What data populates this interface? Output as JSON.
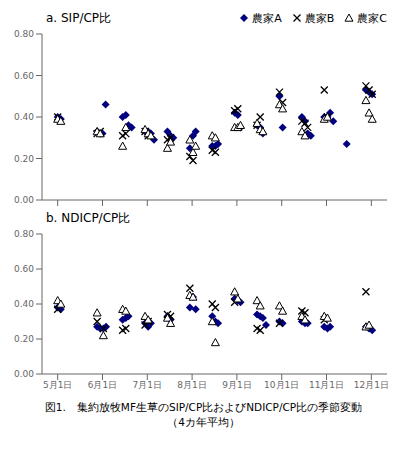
{
  "chart_data": [
    {
      "type": "scatter",
      "title": "a. SIP/CP比",
      "xlim": [
        4.65,
        12.35
      ],
      "xticks": [
        5,
        6,
        7,
        8,
        9,
        10,
        11,
        12
      ],
      "ylim": [
        0.0,
        0.8
      ],
      "yticks": [
        {
          "value": 0.0,
          "label": "0.00"
        },
        {
          "value": 0.2,
          "label": "0.20"
        },
        {
          "value": 0.4,
          "label": "0.40"
        },
        {
          "value": 0.6,
          "label": "0.60"
        },
        {
          "value": 0.8,
          "label": "0.80"
        }
      ],
      "tick_labels": "y",
      "legend": "upper right",
      "series": [
        {
          "name": "農家A",
          "color": "navy",
          "marker": "diamond",
          "x": [
            5.0,
            5.07,
            5.88,
            5.95,
            6.0,
            6.07,
            6.45,
            6.52,
            6.58,
            6.65,
            6.95,
            7.02,
            7.08,
            7.15,
            7.45,
            7.52,
            7.58,
            7.95,
            8.02,
            8.08,
            8.45,
            8.52,
            8.58,
            8.95,
            9.02,
            9.08,
            9.45,
            9.52,
            9.58,
            9.95,
            10.02,
            10.45,
            10.52,
            10.58,
            10.65,
            10.95,
            11.02,
            11.08,
            11.15,
            11.45,
            11.88,
            11.95,
            12.02
          ],
          "values": [
            0.4,
            0.39,
            0.33,
            0.32,
            0.32,
            0.46,
            0.4,
            0.41,
            0.36,
            0.35,
            0.33,
            0.33,
            0.32,
            0.29,
            0.33,
            0.31,
            0.3,
            0.25,
            0.31,
            0.33,
            0.26,
            0.26,
            0.27,
            0.42,
            0.41,
            0.35,
            0.36,
            0.35,
            0.32,
            0.5,
            0.35,
            0.4,
            0.38,
            0.32,
            0.31,
            0.4,
            0.4,
            0.42,
            0.38,
            0.27,
            0.53,
            0.52,
            0.51
          ]
        },
        {
          "name": "農家B",
          "color": "black",
          "marker": "x",
          "x": [
            5.0,
            5.88,
            5.95,
            6.45,
            6.52,
            6.95,
            7.02,
            7.45,
            7.52,
            7.95,
            8.02,
            8.45,
            8.52,
            8.95,
            9.02,
            9.45,
            9.52,
            9.95,
            10.02,
            10.45,
            10.52,
            10.58,
            10.95,
            11.02,
            11.88,
            11.95,
            12.02
          ],
          "values": [
            0.4,
            0.32,
            0.33,
            0.31,
            0.32,
            0.33,
            0.31,
            0.29,
            0.3,
            0.21,
            0.19,
            0.24,
            0.23,
            0.43,
            0.44,
            0.36,
            0.4,
            0.52,
            0.47,
            0.38,
            0.37,
            0.35,
            0.53,
            0.4,
            0.55,
            0.53,
            0.51
          ]
        },
        {
          "name": "農家C",
          "color": "black",
          "marker": "open_triangle",
          "x": [
            5.0,
            5.07,
            5.88,
            5.95,
            6.45,
            6.52,
            6.95,
            7.02,
            7.08,
            7.45,
            7.52,
            7.95,
            8.02,
            8.08,
            8.45,
            8.52,
            8.95,
            9.02,
            9.08,
            9.45,
            9.52,
            9.58,
            9.95,
            10.02,
            10.45,
            10.52,
            10.95,
            11.02,
            11.88,
            11.95,
            12.02
          ],
          "values": [
            0.39,
            0.38,
            0.33,
            0.32,
            0.26,
            0.35,
            0.34,
            0.32,
            0.31,
            0.25,
            0.28,
            0.29,
            0.23,
            0.26,
            0.31,
            0.3,
            0.35,
            0.35,
            0.36,
            0.37,
            0.34,
            0.33,
            0.46,
            0.44,
            0.33,
            0.31,
            0.39,
            0.4,
            0.48,
            0.42,
            0.39
          ]
        }
      ]
    },
    {
      "type": "scatter",
      "title": "b. NDICP/CP比",
      "annotations": [
        "図1.　集約放牧MF生草のSIP/CP比およびNDICP/CP比の季節変動",
        "（4カ年平均）"
      ],
      "xlim": [
        4.65,
        12.35
      ],
      "xticks": [
        {
          "value": 5,
          "label": "5月1日"
        },
        {
          "value": 6,
          "label": "6月1日"
        },
        {
          "value": 7,
          "label": "7月1日"
        },
        {
          "value": 8,
          "label": "8月1日"
        },
        {
          "value": 9,
          "label": "9月1日"
        },
        {
          "value": 10,
          "label": "10月1日"
        },
        {
          "value": 11,
          "label": "11月1日"
        },
        {
          "value": 12,
          "label": "12月1日"
        }
      ],
      "ylim": [
        0.0,
        0.8
      ],
      "yticks": [
        {
          "value": 0.0,
          "label": "0.00"
        },
        {
          "value": 0.2,
          "label": "0.20"
        },
        {
          "value": 0.4,
          "label": "0.40"
        },
        {
          "value": 0.6,
          "label": "0.60"
        },
        {
          "value": 0.8,
          "label": "0.80"
        }
      ],
      "series": [
        {
          "color": "navy",
          "marker": "diamond",
          "x": [
            5.0,
            5.07,
            5.88,
            5.95,
            6.02,
            6.08,
            6.45,
            6.52,
            6.58,
            6.95,
            7.02,
            7.08,
            7.45,
            7.52,
            7.95,
            8.02,
            8.08,
            8.45,
            8.52,
            8.58,
            8.95,
            9.02,
            9.08,
            9.45,
            9.52,
            9.58,
            9.65,
            9.95,
            10.02,
            10.45,
            10.52,
            10.58,
            10.95,
            11.02,
            11.08,
            11.88,
            11.95,
            12.02
          ],
          "values": [
            0.38,
            0.37,
            0.27,
            0.26,
            0.26,
            0.27,
            0.31,
            0.32,
            0.33,
            0.29,
            0.27,
            0.29,
            0.33,
            0.31,
            0.38,
            0.44,
            0.37,
            0.33,
            0.3,
            0.29,
            0.43,
            0.42,
            0.41,
            0.34,
            0.33,
            0.32,
            0.28,
            0.3,
            0.29,
            0.3,
            0.29,
            0.29,
            0.27,
            0.26,
            0.27,
            0.27,
            0.26,
            0.25
          ]
        },
        {
          "color": "black",
          "marker": "x",
          "x": [
            5.0,
            5.88,
            6.02,
            6.45,
            6.52,
            6.95,
            7.02,
            7.45,
            7.52,
            7.95,
            8.45,
            8.52,
            8.95,
            9.45,
            9.52,
            9.95,
            10.45,
            10.52,
            10.95,
            11.88
          ],
          "values": [
            0.37,
            0.3,
            0.26,
            0.25,
            0.26,
            0.28,
            0.3,
            0.34,
            0.33,
            0.49,
            0.4,
            0.38,
            0.41,
            0.26,
            0.25,
            0.29,
            0.36,
            0.35,
            0.31,
            0.47
          ]
        },
        {
          "color": "black",
          "marker": "open_triangle",
          "x": [
            5.0,
            5.07,
            5.88,
            6.02,
            6.45,
            6.52,
            6.95,
            7.02,
            7.45,
            7.52,
            7.95,
            8.02,
            8.45,
            8.52,
            8.95,
            9.02,
            9.45,
            9.52,
            9.95,
            10.02,
            10.45,
            10.52,
            10.95,
            11.02,
            11.88,
            11.95
          ],
          "values": [
            0.42,
            0.4,
            0.35,
            0.22,
            0.37,
            0.36,
            0.33,
            0.31,
            0.32,
            0.29,
            0.45,
            0.44,
            0.3,
            0.18,
            0.47,
            0.43,
            0.42,
            0.39,
            0.39,
            0.36,
            0.33,
            0.31,
            0.33,
            0.32,
            0.27,
            0.28
          ]
        }
      ]
    }
  ]
}
